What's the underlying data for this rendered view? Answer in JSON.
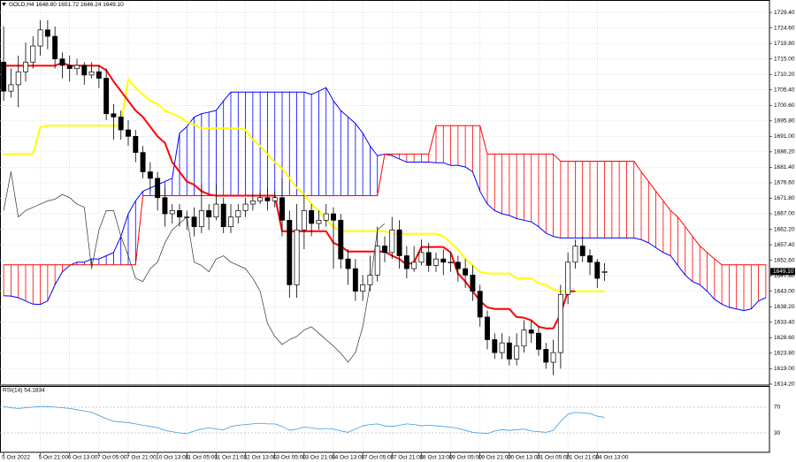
{
  "chart_data": {
    "type": "candlestick",
    "title": "GOLD,H4 1648.80 1651.72 1646.24 1649.10",
    "categories": [
      "5 Oct 2022",
      null,
      null,
      null,
      null,
      "5 Oct 21:00",
      null,
      null,
      null,
      "6 Oct 13:00",
      null,
      null,
      null,
      "7 Oct 05:00",
      null,
      null,
      null,
      "7 Oct 21:00",
      null,
      null,
      null,
      "10 Oct 13:00",
      null,
      null,
      null,
      "11 Oct 05:00",
      null,
      null,
      null,
      "11 Oct 21:00",
      null,
      null,
      null,
      "12 Oct 13:00",
      null,
      null,
      null,
      "13 Oct 05:00",
      null,
      null,
      null,
      "13 Oct 21:00",
      null,
      null,
      null,
      "14 Oct 13:00",
      null,
      null,
      null,
      "17 Oct 05:00",
      null,
      null,
      null,
      "17 Oct 21:00",
      null,
      null,
      null,
      "18 Oct 13:00",
      null,
      null,
      null,
      "19 Oct 05:00",
      null,
      null,
      null,
      "19 Oct 21:00",
      null,
      null,
      null,
      "20 Oct 13:00",
      null,
      null,
      null,
      "21 Oct 05:00",
      null,
      null,
      null,
      "21 Oct 21:00",
      null,
      null,
      null,
      "24 Oct 13:00",
      null,
      null,
      null,
      null,
      null,
      null,
      null,
      null,
      null,
      null,
      null,
      null,
      null,
      null,
      null,
      null,
      null,
      null,
      null,
      null,
      null,
      null,
      null
    ],
    "open": [
      1714,
      1705,
      1707,
      1711,
      1714,
      1719,
      1724,
      1722,
      1715,
      1713,
      1712,
      1713,
      1710,
      1711,
      1709,
      1698,
      1697,
      1693,
      1691,
      1686,
      1680,
      1678,
      1672,
      1667,
      1668,
      1666,
      1666,
      1663,
      1668,
      1666,
      1670,
      1663,
      1666,
      1668,
      1670,
      1671,
      1672,
      1671,
      1672,
      1665,
      1645,
      1662,
      1668,
      1664,
      1665,
      1667,
      1665,
      1653,
      1650,
      1643,
      1645,
      1648,
      1657,
      1655,
      1662,
      1654,
      1650,
      1652,
      1655,
      1651,
      1653,
      1652,
      1652,
      1650,
      1648,
      1643,
      1635,
      1628,
      1624,
      1627,
      1622,
      1626,
      1631,
      1630,
      1625,
      1621,
      1624,
      1642,
      1652,
      1657,
      1654,
      1652,
      1648.8,
      null,
      null,
      null,
      null,
      null,
      null,
      null,
      null,
      null,
      null,
      null,
      null,
      null,
      null,
      null,
      null,
      null,
      null,
      null,
      null,
      null,
      null
    ],
    "high": [
      1725,
      1712,
      1716,
      1720,
      1722,
      1727,
      1727,
      1725,
      1717,
      1716,
      1715,
      1714,
      1714,
      1713,
      1712,
      1701,
      1699,
      1696,
      1693,
      1688,
      1683,
      1680,
      1675,
      1670,
      1670,
      1668,
      1669,
      1676,
      1670,
      1676,
      1672,
      1670,
      1670,
      1672,
      1673,
      1674,
      1675,
      1674,
      1678,
      1668,
      1670,
      1673,
      1670,
      1668,
      1670,
      1669,
      1667,
      1656,
      1653,
      1648,
      1654,
      1663,
      1660,
      1666,
      1665,
      1657,
      1657,
      1659,
      1658,
      1655,
      1656,
      1655,
      1654,
      1653,
      1651,
      1645,
      1637,
      1630,
      1630,
      1629,
      1630,
      1634,
      1634,
      1632,
      1627,
      1628,
      1645,
      1655,
      1659,
      1660,
      1656,
      1653,
      1651.72,
      null,
      null,
      null,
      null,
      null,
      null,
      null,
      null,
      null,
      null,
      null,
      null,
      null,
      null,
      null,
      null,
      null,
      null,
      null,
      null,
      null,
      null
    ],
    "low": [
      1702,
      1703,
      1700,
      1708,
      1712,
      1716,
      1718,
      1712,
      1709,
      1708,
      1710,
      1707,
      1709,
      1706,
      1696,
      1690,
      1690,
      1688,
      1683,
      1678,
      1674,
      1668,
      1663,
      1664,
      1663,
      1662,
      1660,
      1661,
      1662,
      1665,
      1661,
      1661,
      1664,
      1666,
      1668,
      1670,
      1668,
      1669,
      1660,
      1641,
      1641,
      1656,
      1660,
      1662,
      1663,
      1650,
      1650,
      1645,
      1640,
      1640,
      1643,
      1646,
      1652,
      1653,
      1650,
      1647,
      1649,
      1651,
      1649,
      1649,
      1648,
      1649,
      1646,
      1644,
      1640,
      1632,
      1625,
      1622,
      1622,
      1620,
      1620,
      1624,
      1627,
      1623,
      1619,
      1617,
      1619,
      1639,
      1650,
      1652,
      1648,
      1644,
      1646.24,
      null,
      null,
      null,
      null,
      null,
      null,
      null,
      null,
      null,
      null,
      null,
      null,
      null,
      null,
      null,
      null,
      null,
      null,
      null,
      null,
      null,
      null
    ],
    "close": [
      1705,
      1707,
      1711,
      1714,
      1719,
      1724,
      1722,
      1715,
      1713,
      1712,
      1713,
      1710,
      1711,
      1709,
      1698,
      1697,
      1693,
      1691,
      1686,
      1680,
      1678,
      1672,
      1667,
      1668,
      1666,
      1666,
      1663,
      1668,
      1666,
      1670,
      1663,
      1666,
      1668,
      1670,
      1671,
      1672,
      1671,
      1672,
      1665,
      1645,
      1662,
      1668,
      1664,
      1665,
      1667,
      1665,
      1653,
      1650,
      1643,
      1645,
      1648,
      1657,
      1655,
      1662,
      1654,
      1650,
      1652,
      1655,
      1651,
      1653,
      1652,
      1652,
      1650,
      1648,
      1643,
      1635,
      1628,
      1624,
      1627,
      1622,
      1626,
      1631,
      1630,
      1625,
      1621,
      1624,
      1642,
      1652,
      1657,
      1654,
      1652,
      1647,
      1649.1,
      null,
      null,
      null,
      null,
      null,
      null,
      null,
      null,
      null,
      null,
      null,
      null,
      null,
      null,
      null,
      null,
      null,
      null,
      null,
      null,
      null,
      null
    ],
    "up_color": "#ffffff",
    "down_color": "#000000",
    "edge_color": "#000000",
    "ichimoku": {
      "span_a": {
        "color": "#0000ff",
        "values": [
          1641.6,
          1641.5,
          1641,
          1640,
          1639,
          1638.9,
          1640,
          1645,
          1649,
          1651,
          1652,
          1652,
          1653,
          1653,
          1654,
          1655,
          1660,
          1667,
          1671,
          1674,
          1675,
          1676,
          1677,
          1678,
          1692,
          1694,
          1697,
          1698,
          1698.5,
          1699,
          1702,
          1704.7,
          1704.7,
          1704.7,
          1704.7,
          1704.7,
          1704.7,
          1704.7,
          1704.7,
          1704.7,
          1704.7,
          1704.7,
          1704,
          1705,
          1706.1,
          1702,
          1699,
          1697,
          1695,
          1692,
          1688,
          1685,
          1685.5,
          1685,
          1684,
          1683,
          1683,
          1683,
          1683,
          1682.8,
          1682.8,
          1682,
          1682,
          1681.5,
          1680,
          1674,
          1670,
          1668,
          1667,
          1666.5,
          1665.5,
          1665,
          1664.5,
          1663,
          1661,
          1660,
          1659.5,
          1659.5,
          1659.5,
          1659.5,
          1659.5,
          1659.5,
          1659.5,
          1659.5,
          1659.5,
          1659.5,
          1659.5,
          1659,
          1658,
          1656.5,
          1655,
          1654,
          1651,
          1648,
          1646,
          1645,
          1643,
          1640.5,
          1639,
          1638,
          1637.5,
          1637,
          1637.5,
          1640,
          1641
        ]
      },
      "span_b": {
        "color": "#ff0000",
        "values": [
          1651.2,
          1651.2,
          1651.2,
          1651.2,
          1651.2,
          1651.2,
          1651.2,
          1651.2,
          1651.2,
          1651.2,
          1651.2,
          1651.2,
          1651.2,
          1651.2,
          1651.2,
          1651.2,
          1651.2,
          1651.2,
          1651.2,
          1672.6,
          1672.6,
          1672.6,
          1672.6,
          1672.6,
          1672.6,
          1672.6,
          1672.6,
          1672.6,
          1672.6,
          1672.6,
          1672.6,
          1672.6,
          1672.6,
          1672.6,
          1672.6,
          1672.6,
          1672.6,
          1672.6,
          1672.6,
          1672.6,
          1672.6,
          1672.6,
          1672.6,
          1672.6,
          1672.6,
          1672.6,
          1672.6,
          1672.6,
          1672.6,
          1672.6,
          1672.6,
          1672.6,
          1685.5,
          1685.5,
          1685.5,
          1685.5,
          1685.5,
          1685.5,
          1685.5,
          1694.3,
          1694.3,
          1694.3,
          1694.3,
          1694.3,
          1694.3,
          1694.3,
          1685.5,
          1685.5,
          1685.5,
          1685.5,
          1685.5,
          1685.5,
          1685.5,
          1685.5,
          1685.5,
          1685.5,
          1683.3,
          1683.3,
          1683.3,
          1683.3,
          1683.3,
          1683.3,
          1683.3,
          1683.3,
          1683.3,
          1683.3,
          1683.3,
          1680,
          1677,
          1674,
          1671,
          1668,
          1666,
          1663,
          1660,
          1657,
          1655,
          1653,
          1651.2,
          1651.2,
          1651.2,
          1651.2,
          1651.2,
          1651.2,
          1651.2
        ]
      },
      "tenkan": {
        "color": "#ff0000",
        "values": [
          1712.9,
          1712.9,
          1712.9,
          1712.9,
          1712.9,
          1712.9,
          1712.9,
          1712.9,
          1713.8,
          1712.9,
          1712.9,
          1712.9,
          1712.9,
          1712.9,
          1711.5,
          1708,
          1705,
          1702,
          1699,
          1697,
          1694,
          1691,
          1689,
          1683,
          1680,
          1677,
          1676,
          1674,
          1673,
          1672.6,
          1672.6,
          1672.6,
          1672.6,
          1672.6,
          1672.6,
          1672.6,
          1672.6,
          1672.6,
          1661.6,
          1661.6,
          1661.6,
          1661.6,
          1661.6,
          1661.6,
          1661.6,
          1658,
          1657,
          1655.3,
          1655.3,
          1655.3,
          1655.3,
          1655.3,
          1655.3,
          1654,
          1653,
          1651.2,
          1652,
          1656.7,
          1656.7,
          1656.7,
          1656.7,
          1655,
          1648.5,
          1646,
          1643,
          1640,
          1638,
          1637.5,
          1637.5,
          1637.5,
          1635,
          1634.8,
          1634,
          1632,
          1631.5,
          1631.5,
          1636,
          1643,
          1643,
          null,
          null,
          null,
          null,
          null,
          null,
          null,
          null,
          null,
          null,
          null,
          null,
          null,
          null,
          null,
          null,
          null,
          null,
          null,
          null,
          null,
          null,
          null,
          null,
          null,
          null
        ]
      },
      "kijun": {
        "color": "#ffff00",
        "values": [
          1685.5,
          1685.5,
          1685.5,
          1685.5,
          1685.5,
          1693.8,
          1694.3,
          1694.3,
          1694.3,
          1694.3,
          1694.3,
          1694.3,
          1694.3,
          1694.3,
          1694.3,
          1694.3,
          1694.3,
          1708.8,
          1706,
          1704,
          1702,
          1701,
          1699,
          1698,
          1697,
          1695.5,
          1694.6,
          1693.5,
          1693.5,
          1693.5,
          1693.5,
          1693.5,
          1693.5,
          1693,
          1690,
          1688,
          1685.5,
          1683,
          1681,
          1678,
          1675,
          1673,
          1670,
          1668,
          1665,
          1663,
          1661.6,
          1661.6,
          1661.6,
          1661.6,
          1661.6,
          1661.6,
          1661.6,
          1660.8,
          1660.8,
          1660.8,
          1660.8,
          1660.8,
          1660.8,
          1660.8,
          1660,
          1658,
          1656,
          1653,
          1651,
          1649,
          1648.5,
          1648.5,
          1648.5,
          1648.5,
          1647,
          1647,
          1647,
          1645.5,
          1645,
          1643.5,
          1643,
          1643,
          1643,
          1643,
          1643,
          1643,
          1643,
          null,
          null,
          null,
          null,
          null,
          null,
          null,
          null,
          null,
          null,
          null,
          null,
          null,
          null,
          null,
          null,
          null,
          null,
          null,
          null,
          null,
          null
        ]
      },
      "chikou": {
        "color": "#303030",
        "values": [
          1668,
          1680,
          1666,
          1668,
          1669,
          1670,
          1671,
          1671.5,
          1673,
          1672,
          1670,
          1669,
          1650,
          1662,
          1668,
          1668,
          1660,
          1654,
          1647,
          1646,
          1650,
          1652,
          1658,
          1662,
          1664,
          1666,
          1652,
          1651,
          1649,
          1653,
          1654,
          1652,
          1651,
          1650,
          1647,
          1643,
          1633,
          1629,
          1626.5,
          1628,
          1629,
          1631,
          1632,
          1630,
          1628,
          1626,
          1623.8,
          1621,
          1624,
          1632,
          1645,
          1662,
          1664,
          null,
          null,
          null,
          null,
          null,
          null,
          null,
          null,
          null,
          null,
          null,
          null,
          null,
          null,
          null,
          null,
          null,
          null,
          null,
          null,
          null,
          null,
          null,
          null,
          null,
          null,
          null,
          null,
          null,
          null,
          null,
          null,
          null,
          null,
          null,
          null,
          null,
          null,
          null,
          null,
          null,
          null,
          null,
          null,
          null,
          null,
          null,
          null,
          null,
          null
        ]
      }
    },
    "ylim": [
      1613.9,
      1732.7
    ],
    "yticks": [
      {
        "value": 1729.4,
        "label": "1729.40"
      },
      {
        "value": 1724.6,
        "label": "1724.60"
      },
      {
        "value": 1719.8,
        "label": "1719.80"
      },
      {
        "value": 1715,
        "label": "1715.00"
      },
      {
        "value": 1710.2,
        "label": "1710.20"
      },
      {
        "value": 1705.4,
        "label": "1705.40"
      },
      {
        "value": 1700.6,
        "label": "1700.60"
      },
      {
        "value": 1695.8,
        "label": "1695.80"
      },
      {
        "value": 1691,
        "label": "1691.00"
      },
      {
        "value": 1686.2,
        "label": "1686.20"
      },
      {
        "value": 1681.4,
        "label": "1681.40"
      },
      {
        "value": 1676.6,
        "label": "1676.60"
      },
      {
        "value": 1671.8,
        "label": "1671.80"
      },
      {
        "value": 1667,
        "label": "1667.00"
      },
      {
        "value": 1662.2,
        "label": "1662.20"
      },
      {
        "value": 1657.4,
        "label": "1657.40"
      },
      {
        "value": 1652.6,
        "label": "1652.60"
      },
      {
        "value": 1647.8,
        "label": "1647.80"
      },
      {
        "value": 1643,
        "label": "1643.00"
      },
      {
        "value": 1638.2,
        "label": "1638.20"
      },
      {
        "value": 1633.4,
        "label": "1633.40"
      },
      {
        "value": 1628.6,
        "label": "1628.60"
      },
      {
        "value": 1623.8,
        "label": "1623.80"
      },
      {
        "value": 1619,
        "label": "1619.00"
      },
      {
        "value": 1614.2,
        "label": "1614.20"
      }
    ],
    "grid": true,
    "last_price": {
      "value": 1649.1,
      "label": "1649.10"
    },
    "rsi": {
      "title": "RSI(14) 54.1834",
      "color": "#3b9de0",
      "ylim": [
        0,
        100
      ],
      "yticks": [
        70,
        30
      ],
      "values": [
        71,
        69,
        68,
        69,
        70,
        71,
        71,
        70,
        69,
        68,
        66,
        64,
        62,
        57,
        52,
        48,
        47,
        46,
        44,
        42,
        40,
        38,
        34,
        32,
        30,
        29,
        33,
        36,
        38,
        36,
        35,
        40,
        42,
        43,
        44,
        45,
        44,
        44,
        40,
        34,
        36,
        39,
        38,
        36,
        37,
        36,
        33,
        31,
        36,
        41,
        43,
        44,
        41,
        40,
        42,
        44,
        43,
        41,
        42,
        41,
        40,
        39,
        37,
        34,
        31,
        30,
        29,
        33,
        35,
        34,
        35,
        36,
        33,
        32,
        31,
        34,
        48,
        59,
        62,
        61,
        60,
        56,
        54.1834,
        null,
        null,
        null,
        null,
        null,
        null,
        null,
        null,
        null,
        null,
        null,
        null,
        null,
        null,
        null,
        null,
        null,
        null,
        null,
        null,
        null,
        null
      ]
    }
  }
}
